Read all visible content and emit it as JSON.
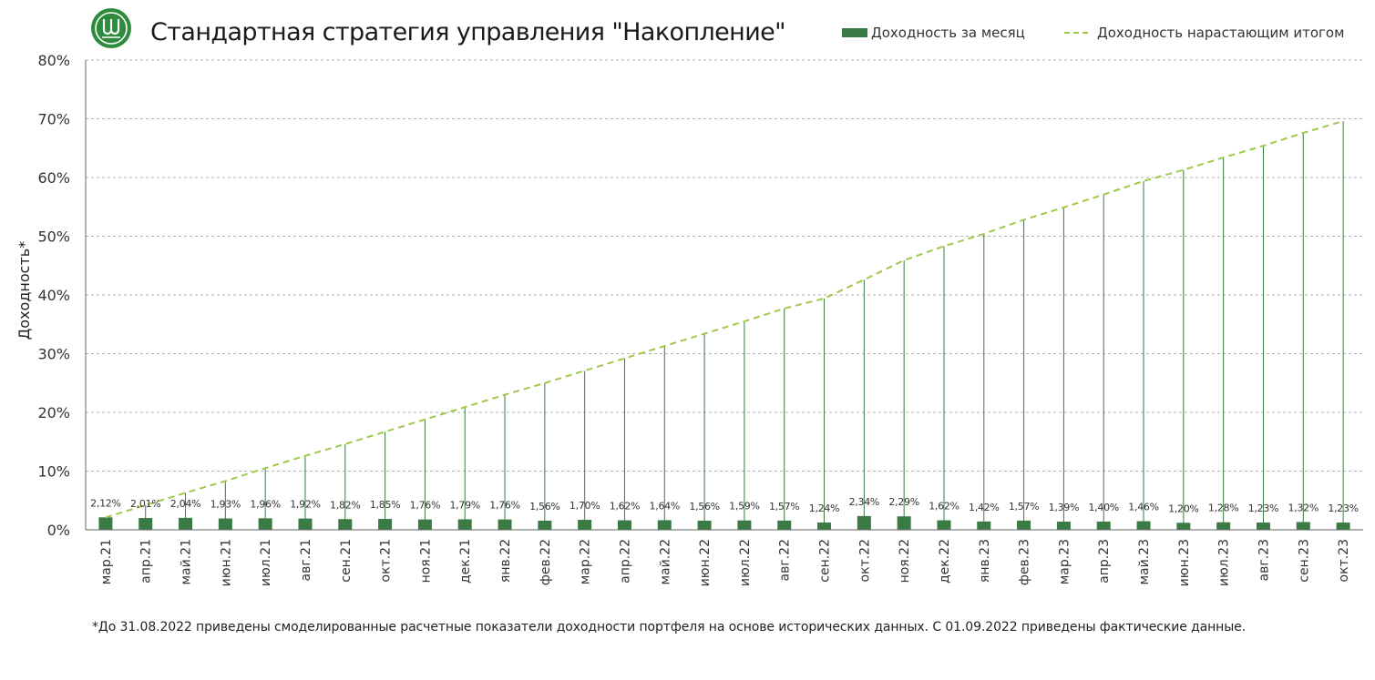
{
  "header": {
    "title": "Стандартная стратегия управления \"Накопление\"",
    "logo_icon": "fund-logo-icon"
  },
  "legend": {
    "monthly_label": "Доходность за месяц",
    "cumulative_label": "Доходность нарастающим итогом"
  },
  "footnote": "*До 31.08.2022 приведены смоделированные расчетные показатели доходности портфеля на основе исторических данных. С 01.09.2022 приведены фактические данные.",
  "colors": {
    "bar": "#3a7a45",
    "cumulative_line": "#9fc94a",
    "drop_line": "#3a7a45",
    "grid": "#999999",
    "logo": "#2e8b3e"
  },
  "chart_data": {
    "type": "bar",
    "ylabel": "Доходность*",
    "ylim": [
      0,
      80
    ],
    "yticks": [
      "0%",
      "10%",
      "20%",
      "30%",
      "40%",
      "50%",
      "60%",
      "70%",
      "80%"
    ],
    "grid": true,
    "legend_position": "top-right",
    "categories": [
      "мар.21",
      "апр.21",
      "май.21",
      "июн.21",
      "июл.21",
      "авг.21",
      "сен.21",
      "окт.21",
      "ноя.21",
      "дек.21",
      "янв.22",
      "фев.22",
      "мар.22",
      "апр.22",
      "май.22",
      "июн.22",
      "июл.22",
      "авг.22",
      "сен.22",
      "окт.22",
      "ноя.22",
      "дек.22",
      "янв.23",
      "фев.23",
      "мар.23",
      "апр.23",
      "май.23",
      "июн.23",
      "июл.23",
      "авг.23",
      "сен.23",
      "окт.23"
    ],
    "series": [
      {
        "name": "Доходность за месяц",
        "kind": "bar",
        "values": [
          2.12,
          2.01,
          2.04,
          1.93,
          1.96,
          1.92,
          1.82,
          1.85,
          1.76,
          1.79,
          1.76,
          1.56,
          1.7,
          1.62,
          1.64,
          1.56,
          1.59,
          1.57,
          1.24,
          2.34,
          2.29,
          1.62,
          1.42,
          1.57,
          1.39,
          1.4,
          1.46,
          1.2,
          1.28,
          1.23,
          1.32,
          1.23
        ],
        "labels": [
          "2,12%",
          "2,01%",
          "2,04%",
          "1,93%",
          "1,96%",
          "1,92%",
          "1,82%",
          "1,85%",
          "1,76%",
          "1,79%",
          "1,76%",
          "1,56%",
          "1,70%",
          "1,62%",
          "1,64%",
          "1,56%",
          "1,59%",
          "1,57%",
          "1,24%",
          "2,34%",
          "2,29%",
          "1,62%",
          "1,42%",
          "1,57%",
          "1,39%",
          "1,40%",
          "1,46%",
          "1,20%",
          "1,28%",
          "1,23%",
          "1,32%",
          "1,23%"
        ]
      },
      {
        "name": "Доходность нарастающим итогом",
        "kind": "line",
        "style": "dashed",
        "values": [
          2.1,
          4.2,
          6.3,
          8.3,
          10.5,
          12.6,
          14.6,
          16.7,
          18.8,
          20.9,
          23.0,
          25.0,
          27.1,
          29.2,
          31.3,
          33.4,
          35.5,
          37.7,
          39.4,
          42.6,
          45.9,
          48.3,
          50.4,
          52.8,
          54.9,
          57.1,
          59.4,
          61.3,
          63.4,
          65.4,
          67.6,
          69.6
        ]
      }
    ]
  }
}
